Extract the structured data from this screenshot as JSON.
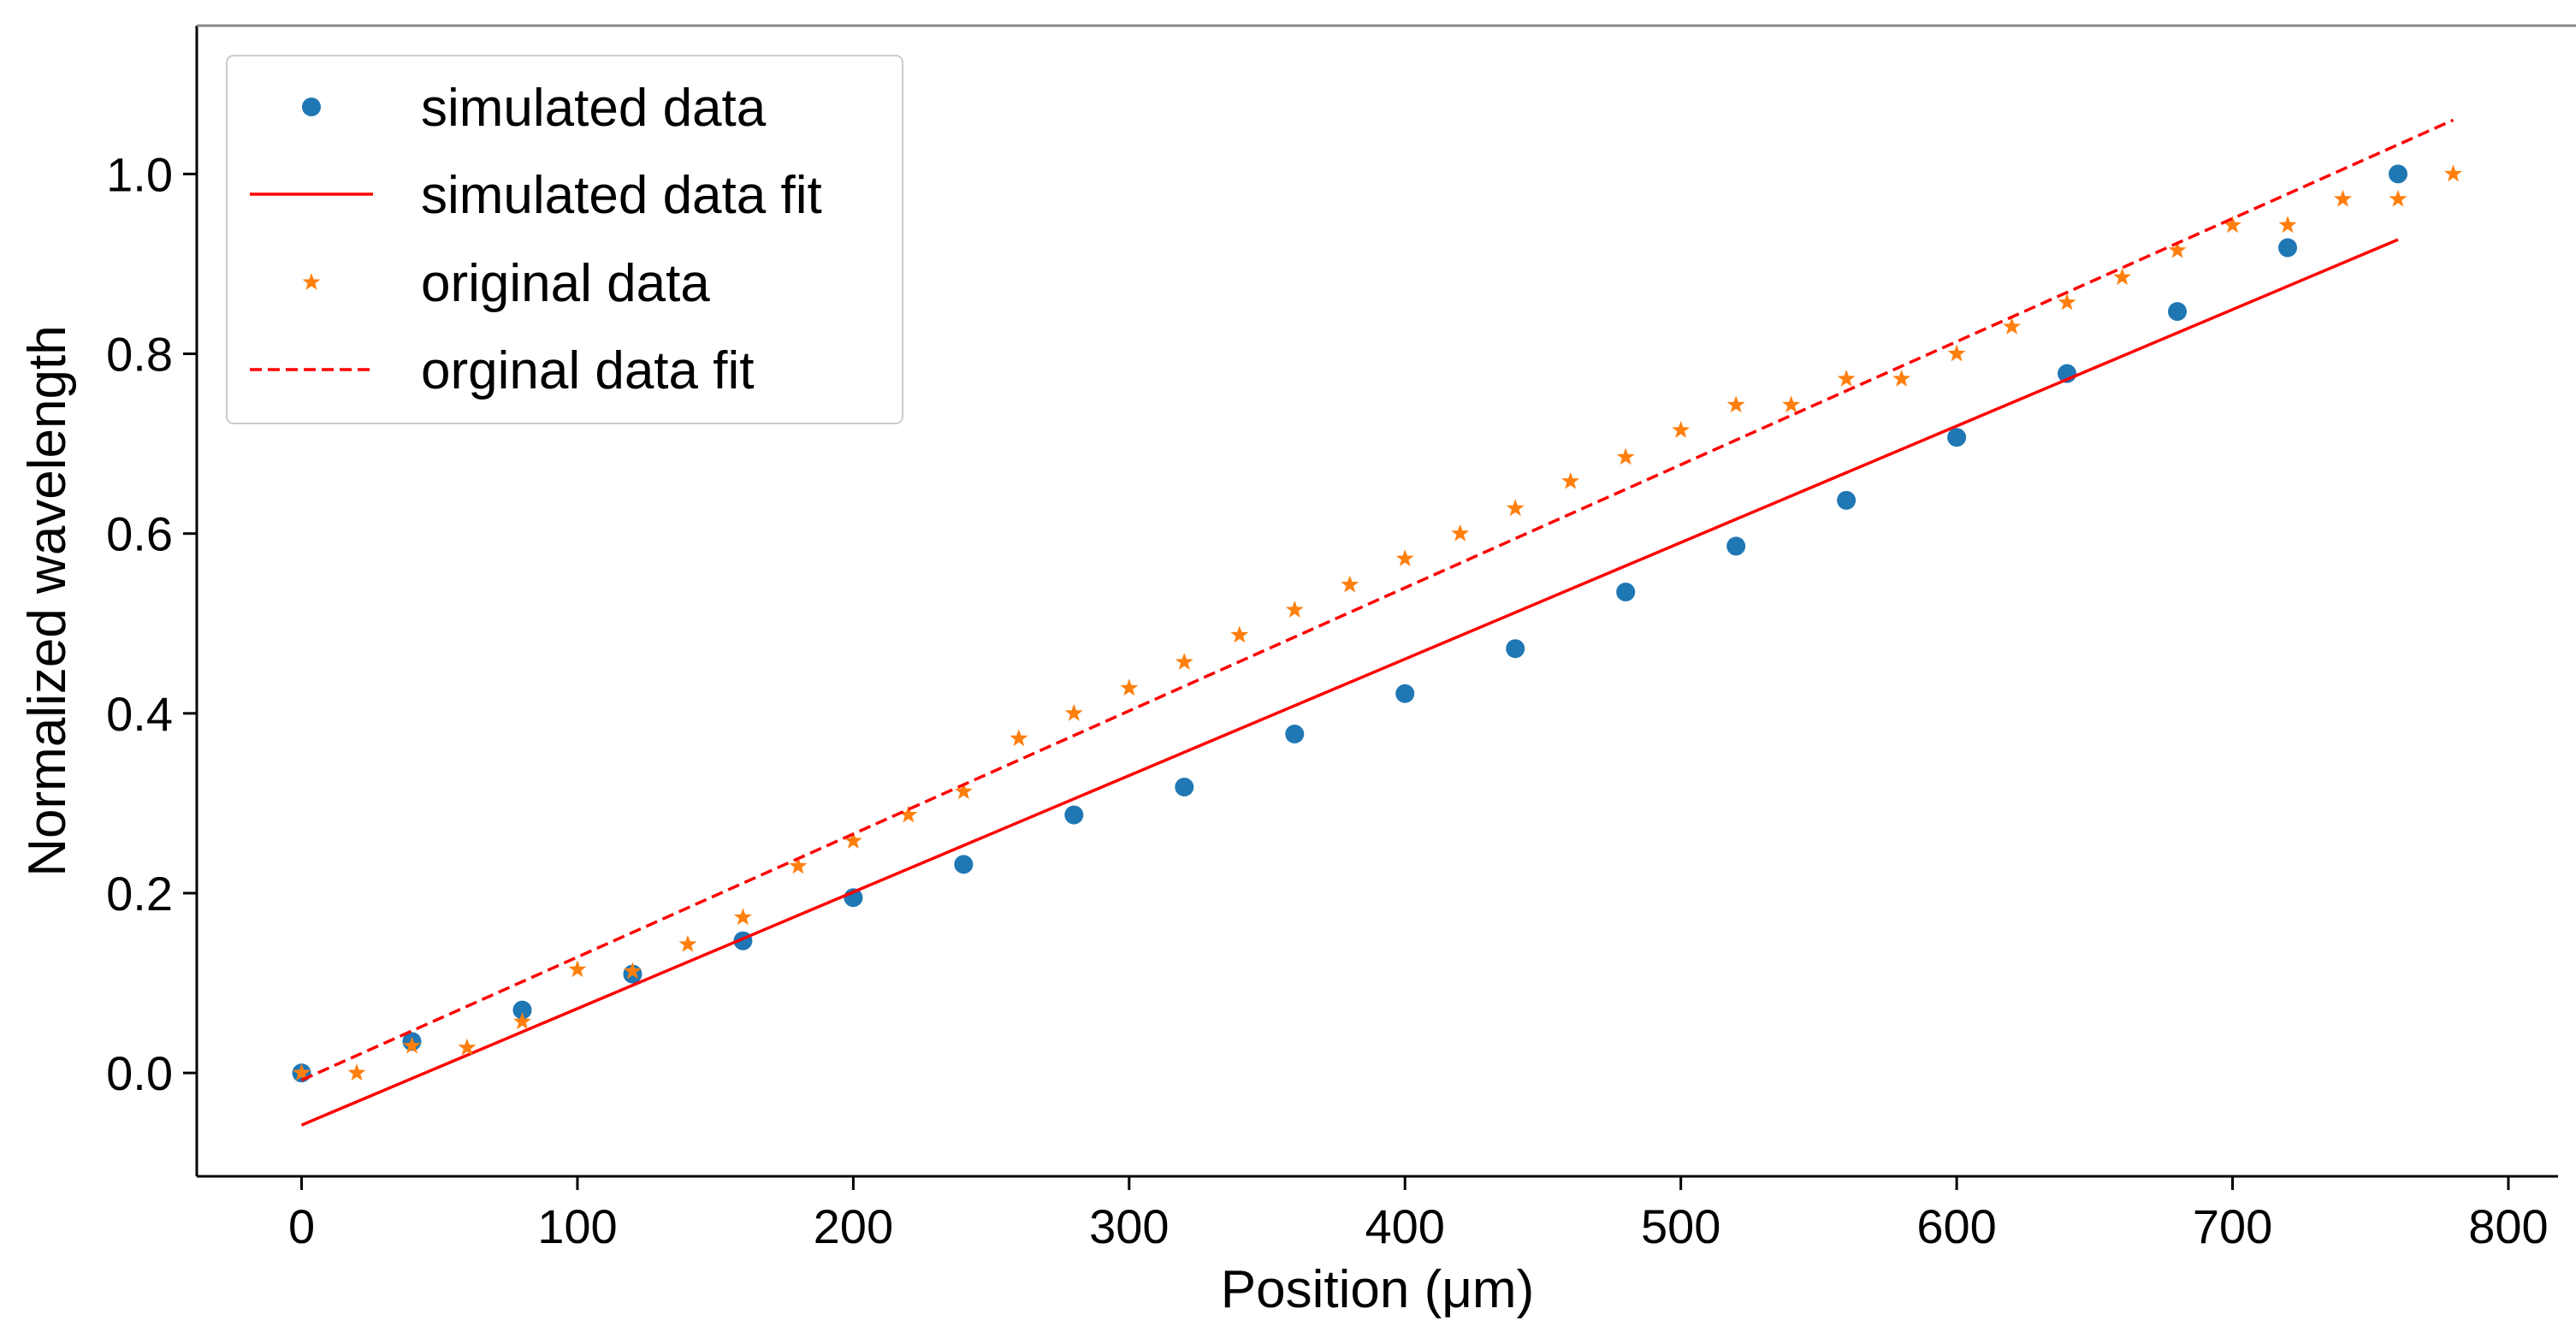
{
  "chart_data": {
    "type": "scatter",
    "title": "",
    "xlabel": "Position (μm)",
    "ylabel": "Normalized wavelength",
    "xlim": [
      -38,
      818
    ],
    "ylim": [
      -0.115,
      1.165
    ],
    "xticks": [
      0,
      100,
      200,
      300,
      400,
      500,
      600,
      700,
      800
    ],
    "xtick_labels": [
      "0",
      "100",
      "200",
      "300",
      "400",
      "500",
      "600",
      "700",
      "800"
    ],
    "yticks": [
      0.0,
      0.2,
      0.4,
      0.6,
      0.8,
      1.0
    ],
    "ytick_labels": [
      "0.0",
      "0.2",
      "0.4",
      "0.6",
      "0.8",
      "1.0"
    ],
    "grid": false,
    "legend_position": "top-left",
    "colors": {
      "simulated": "#1f77b4",
      "original": "#ff7f0e",
      "fit": "#ff0000"
    },
    "series": [
      {
        "name": "simulated data",
        "kind": "scatter",
        "marker": "circle",
        "color": "#1f77b4",
        "x": [
          0,
          40,
          80,
          120,
          160,
          200,
          240,
          280,
          320,
          360,
          400,
          440,
          480,
          520,
          560,
          600,
          640,
          680,
          720,
          760
        ],
        "y": [
          0.0,
          0.035,
          0.07,
          0.11,
          0.147,
          0.195,
          0.232,
          0.287,
          0.318,
          0.377,
          0.422,
          0.472,
          0.535,
          0.586,
          0.637,
          0.707,
          0.778,
          0.847,
          0.918,
          1.0
        ]
      },
      {
        "name": "simulated data fit",
        "kind": "line",
        "style": "solid",
        "color": "#ff0000",
        "x": [
          0,
          760
        ],
        "y": [
          -0.058,
          0.927
        ]
      },
      {
        "name": "original data",
        "kind": "scatter",
        "marker": "star",
        "color": "#ff7f0e",
        "x": [
          0,
          20,
          40,
          60,
          80,
          100,
          120,
          140,
          160,
          180,
          200,
          220,
          240,
          260,
          280,
          300,
          320,
          340,
          360,
          380,
          400,
          420,
          440,
          460,
          480,
          500,
          520,
          540,
          560,
          580,
          600,
          620,
          640,
          660,
          680,
          700,
          720,
          740,
          760,
          780
        ],
        "y": [
          0.0,
          0.0,
          0.03,
          0.028,
          0.057,
          0.115,
          0.113,
          0.143,
          0.173,
          0.23,
          0.258,
          0.287,
          0.313,
          0.372,
          0.4,
          0.428,
          0.457,
          0.487,
          0.515,
          0.543,
          0.572,
          0.6,
          0.628,
          0.658,
          0.685,
          0.715,
          0.743,
          0.743,
          0.772,
          0.772,
          0.8,
          0.83,
          0.857,
          0.885,
          0.915,
          0.943,
          0.943,
          0.972,
          0.972,
          1.0
        ]
      },
      {
        "name": "orginal data fit",
        "kind": "line",
        "style": "dashed",
        "color": "#ff0000",
        "x": [
          0,
          780
        ],
        "y": [
          -0.008,
          1.06
        ]
      }
    ]
  }
}
